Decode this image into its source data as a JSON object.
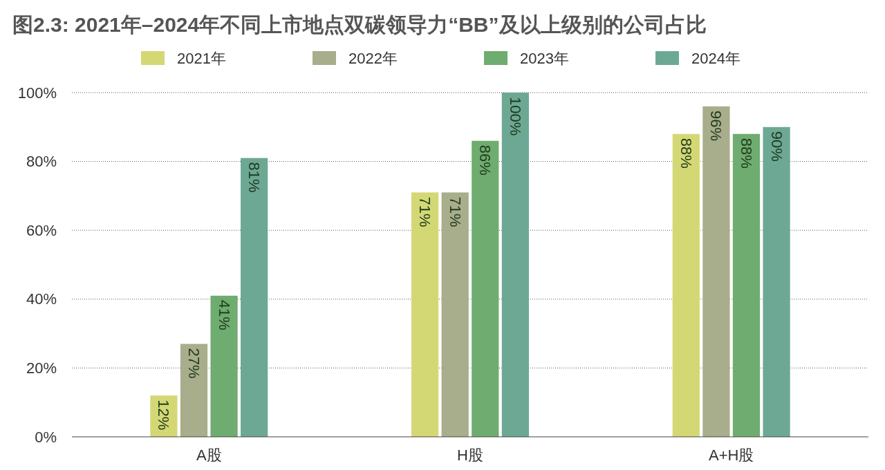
{
  "chart_data": {
    "type": "bar",
    "title": "图2.3: 2021年–2024年不同上市地点双碳领导力“BB”及以上级别的公司占比",
    "categories": [
      "A股",
      "H股",
      "A+H股"
    ],
    "series": [
      {
        "name": "2021年",
        "color": "#d4d874",
        "values": [
          12,
          71,
          88
        ],
        "value_labels": [
          "12%",
          "71%",
          "88%"
        ]
      },
      {
        "name": "2022年",
        "color": "#a8ad8b",
        "values": [
          27,
          71,
          96
        ],
        "value_labels": [
          "27%",
          "71%",
          "96%"
        ]
      },
      {
        "name": "2023年",
        "color": "#6fac6f",
        "values": [
          41,
          86,
          88
        ],
        "value_labels": [
          "41%",
          "86%",
          "88%"
        ]
      },
      {
        "name": "2024年",
        "color": "#6da894",
        "values": [
          81,
          100,
          90
        ],
        "value_labels": [
          "81%",
          "100%",
          "90%"
        ]
      }
    ],
    "ylim": [
      0,
      100
    ],
    "yticks": [
      {
        "value": 0,
        "label": "0%"
      },
      {
        "value": 20,
        "label": "20%"
      },
      {
        "value": 40,
        "label": "40%"
      },
      {
        "value": 60,
        "label": "60%"
      },
      {
        "value": 80,
        "label": "80%"
      },
      {
        "value": 100,
        "label": "100%"
      }
    ],
    "grid": "y",
    "legend": "top"
  }
}
